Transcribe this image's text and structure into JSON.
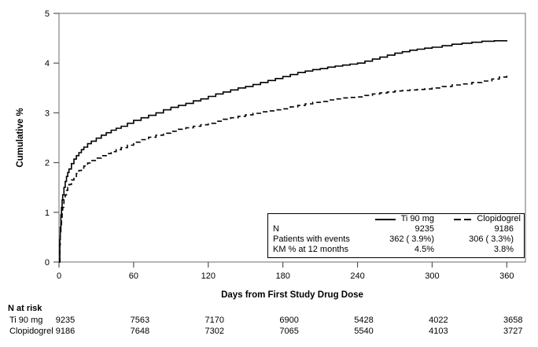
{
  "chart_data": {
    "type": "line",
    "subtype": "kaplan-meier-cumulative-incidence-step",
    "title": "",
    "xlabel": "Days from First Study Drug Dose",
    "ylabel": "Cumulative %",
    "xlim": [
      0,
      375
    ],
    "ylim": [
      0,
      5
    ],
    "x_ticks": [
      0,
      60,
      120,
      180,
      240,
      300,
      360
    ],
    "y_ticks": [
      0,
      1,
      2,
      3,
      4,
      5
    ],
    "grid": false,
    "legend_position": "inside-bottom-right",
    "series": [
      {
        "name": "Ti 90 mg",
        "line_style": "solid",
        "color": "#000000",
        "points": [
          [
            0,
            0
          ],
          [
            0.7,
            0.45
          ],
          [
            1,
            0.7
          ],
          [
            1.5,
            0.95
          ],
          [
            2,
            1.1
          ],
          [
            2.5,
            1.25
          ],
          [
            3,
            1.35
          ],
          [
            4,
            1.5
          ],
          [
            5,
            1.62
          ],
          [
            6,
            1.72
          ],
          [
            7,
            1.8
          ],
          [
            8,
            1.87
          ],
          [
            10,
            1.98
          ],
          [
            12,
            2.07
          ],
          [
            14,
            2.14
          ],
          [
            16,
            2.2
          ],
          [
            18,
            2.26
          ],
          [
            20,
            2.31
          ],
          [
            23,
            2.38
          ],
          [
            26,
            2.43
          ],
          [
            30,
            2.49
          ],
          [
            34,
            2.55
          ],
          [
            38,
            2.6
          ],
          [
            42,
            2.65
          ],
          [
            46,
            2.69
          ],
          [
            50,
            2.73
          ],
          [
            55,
            2.79
          ],
          [
            60,
            2.85
          ],
          [
            66,
            2.9
          ],
          [
            72,
            2.95
          ],
          [
            78,
            3.0
          ],
          [
            84,
            3.06
          ],
          [
            90,
            3.11
          ],
          [
            96,
            3.15
          ],
          [
            102,
            3.19
          ],
          [
            108,
            3.24
          ],
          [
            114,
            3.28
          ],
          [
            120,
            3.33
          ],
          [
            126,
            3.38
          ],
          [
            132,
            3.42
          ],
          [
            138,
            3.46
          ],
          [
            144,
            3.5
          ],
          [
            150,
            3.53
          ],
          [
            156,
            3.57
          ],
          [
            162,
            3.61
          ],
          [
            168,
            3.65
          ],
          [
            174,
            3.69
          ],
          [
            180,
            3.73
          ],
          [
            186,
            3.77
          ],
          [
            192,
            3.81
          ],
          [
            198,
            3.84
          ],
          [
            204,
            3.87
          ],
          [
            210,
            3.89
          ],
          [
            216,
            3.92
          ],
          [
            222,
            3.94
          ],
          [
            228,
            3.96
          ],
          [
            234,
            3.98
          ],
          [
            240,
            4.0
          ],
          [
            246,
            4.04
          ],
          [
            252,
            4.08
          ],
          [
            258,
            4.12
          ],
          [
            264,
            4.16
          ],
          [
            270,
            4.2
          ],
          [
            276,
            4.23
          ],
          [
            282,
            4.26
          ],
          [
            288,
            4.28
          ],
          [
            294,
            4.3
          ],
          [
            300,
            4.32
          ],
          [
            308,
            4.35
          ],
          [
            316,
            4.38
          ],
          [
            324,
            4.4
          ],
          [
            332,
            4.42
          ],
          [
            340,
            4.44
          ],
          [
            350,
            4.45
          ],
          [
            360,
            4.46
          ]
        ]
      },
      {
        "name": "Clopidogrel",
        "line_style": "dashed",
        "color": "#000000",
        "points": [
          [
            0,
            0
          ],
          [
            0.7,
            0.35
          ],
          [
            1,
            0.55
          ],
          [
            1.5,
            0.75
          ],
          [
            2,
            0.9
          ],
          [
            2.5,
            1.0
          ],
          [
            3,
            1.1
          ],
          [
            4,
            1.25
          ],
          [
            5,
            1.35
          ],
          [
            6,
            1.44
          ],
          [
            7,
            1.5
          ],
          [
            8,
            1.56
          ],
          [
            10,
            1.65
          ],
          [
            12,
            1.72
          ],
          [
            14,
            1.78
          ],
          [
            16,
            1.84
          ],
          [
            18,
            1.89
          ],
          [
            20,
            1.93
          ],
          [
            23,
            1.99
          ],
          [
            26,
            2.04
          ],
          [
            30,
            2.09
          ],
          [
            34,
            2.14
          ],
          [
            38,
            2.18
          ],
          [
            42,
            2.22
          ],
          [
            46,
            2.26
          ],
          [
            50,
            2.3
          ],
          [
            55,
            2.35
          ],
          [
            60,
            2.41
          ],
          [
            66,
            2.46
          ],
          [
            72,
            2.51
          ],
          [
            78,
            2.55
          ],
          [
            84,
            2.59
          ],
          [
            90,
            2.63
          ],
          [
            96,
            2.67
          ],
          [
            102,
            2.7
          ],
          [
            108,
            2.73
          ],
          [
            114,
            2.76
          ],
          [
            120,
            2.79
          ],
          [
            126,
            2.83
          ],
          [
            132,
            2.87
          ],
          [
            138,
            2.9
          ],
          [
            144,
            2.93
          ],
          [
            150,
            2.96
          ],
          [
            156,
            2.99
          ],
          [
            162,
            3.02
          ],
          [
            168,
            3.04
          ],
          [
            174,
            3.06
          ],
          [
            180,
            3.08
          ],
          [
            186,
            3.12
          ],
          [
            192,
            3.15
          ],
          [
            198,
            3.18
          ],
          [
            204,
            3.21
          ],
          [
            210,
            3.23
          ],
          [
            216,
            3.26
          ],
          [
            222,
            3.28
          ],
          [
            228,
            3.3
          ],
          [
            234,
            3.31
          ],
          [
            240,
            3.32
          ],
          [
            246,
            3.35
          ],
          [
            252,
            3.38
          ],
          [
            258,
            3.4
          ],
          [
            264,
            3.42
          ],
          [
            270,
            3.44
          ],
          [
            276,
            3.45
          ],
          [
            282,
            3.46
          ],
          [
            288,
            3.47
          ],
          [
            294,
            3.48
          ],
          [
            300,
            3.5
          ],
          [
            308,
            3.53
          ],
          [
            316,
            3.56
          ],
          [
            324,
            3.58
          ],
          [
            332,
            3.61
          ],
          [
            340,
            3.64
          ],
          [
            348,
            3.68
          ],
          [
            354,
            3.72
          ],
          [
            360,
            3.75
          ]
        ]
      }
    ]
  },
  "legend": {
    "series_labels": [
      "Ti 90 mg",
      "Clopidogrel"
    ],
    "stats": [
      {
        "label": "N",
        "ti": "9235",
        "clo": "9186"
      },
      {
        "label": "Patients with events",
        "ti": "362 ( 3.9%)",
        "clo": "306 ( 3.3%)"
      },
      {
        "label": "KM % at 12 months",
        "ti": "4.5%",
        "clo": "3.8%"
      }
    ]
  },
  "risk_table": {
    "heading": "N at risk",
    "rows": [
      {
        "label": "Ti 90 mg",
        "values": [
          "9235",
          "7563",
          "7170",
          "6900",
          "5428",
          "4022",
          "3658"
        ]
      },
      {
        "label": "Clopidogrel",
        "values": [
          "9186",
          "7648",
          "7302",
          "7065",
          "5540",
          "4103",
          "3727"
        ]
      }
    ]
  }
}
